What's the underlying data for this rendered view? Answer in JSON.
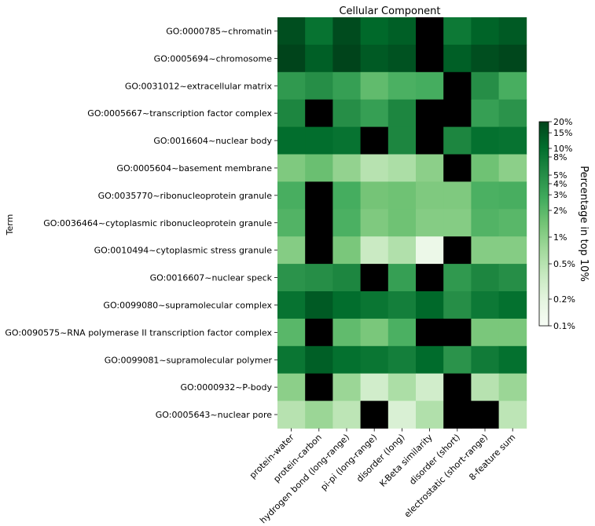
{
  "chart_data": {
    "type": "heatmap",
    "title": "Cellular Component",
    "ylabel": "Term",
    "xlabel": "",
    "rows": [
      "GO:0000785~chromatin",
      "GO:0005694~chromosome",
      "GO:0031012~extracellular matrix",
      "GO:0005667~transcription factor complex",
      "GO:0016604~nuclear body",
      "GO:0005604~basement membrane",
      "GO:0035770~ribonucleoprotein granule",
      "GO:0036464~cytoplasmic ribonucleoprotein granule",
      "GO:0010494~cytoplasmic stress granule",
      "GO:0016607~nuclear speck",
      "GO:0099080~supramolecular complex",
      "GO:0090575~RNA polymerase II transcription factor complex",
      "GO:0099081~supramolecular polymer",
      "GO:0000932~P-body",
      "GO:0005643~nuclear pore"
    ],
    "columns": [
      "protein-water",
      "protein-carbon",
      "hydrogen bond (long-range)",
      "pi-pi (long-range)",
      "disorder (long)",
      "K-Beta similarity",
      "disorder (short)",
      "electrostatic (short-range)",
      "8-feature sum"
    ],
    "values_percent": [
      [
        17,
        9,
        18,
        11,
        13,
        null,
        8,
        12,
        14
      ],
      [
        20,
        13,
        21,
        14,
        16,
        null,
        13,
        17,
        19
      ],
      [
        4,
        5,
        3.5,
        1.8,
        2.4,
        2.6,
        null,
        5,
        2.5
      ],
      [
        6,
        null,
        5,
        3.5,
        6,
        null,
        null,
        3.5,
        4.5
      ],
      [
        10,
        10,
        9,
        null,
        6,
        null,
        6,
        9.5,
        9
      ],
      [
        1.2,
        1.6,
        0.9,
        0.5,
        0.6,
        1.0,
        null,
        1.5,
        1.0
      ],
      [
        2.5,
        null,
        2.6,
        1.4,
        1.5,
        1.2,
        1.2,
        2.4,
        2.5
      ],
      [
        2.2,
        null,
        2.4,
        1.2,
        1.5,
        1.1,
        1.1,
        2.2,
        2.0
      ],
      [
        1.1,
        null,
        1.3,
        0.35,
        0.55,
        0.15,
        null,
        1.1,
        1.1
      ],
      [
        4.5,
        5,
        6,
        null,
        3.5,
        null,
        4,
        6,
        5
      ],
      [
        9,
        14,
        10,
        8.5,
        7,
        11,
        5,
        8,
        9.5
      ],
      [
        2,
        null,
        1.8,
        1.3,
        2.4,
        null,
        null,
        1.3,
        1.3
      ],
      [
        8.5,
        13,
        9.5,
        8.5,
        7,
        10.5,
        4.5,
        7.5,
        9.5
      ],
      [
        1.0,
        null,
        0.8,
        0.3,
        0.6,
        0.3,
        null,
        0.5,
        0.8
      ],
      [
        0.5,
        0.8,
        0.45,
        null,
        0.25,
        0.55,
        null,
        null,
        0.45
      ]
    ],
    "missing_color": "#000000",
    "colormap": "Greens",
    "scale": "log",
    "vlim": [
      0.1,
      20
    ],
    "colorbar": {
      "label": "Percentage in top 10%",
      "ticks": [
        0.1,
        0.2,
        0.5,
        1,
        2,
        3,
        4,
        5,
        8,
        10,
        15,
        20
      ],
      "tick_labels": [
        "0.1%",
        "0.2%",
        "0.5%",
        "1%",
        "2%",
        "3%",
        "4%",
        "5%",
        "8%",
        "10%",
        "15%",
        "20%"
      ]
    }
  }
}
